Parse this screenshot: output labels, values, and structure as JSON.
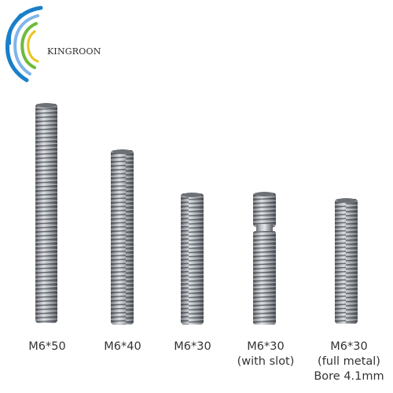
{
  "brand": {
    "name": "KINGROON",
    "colors": {
      "blue": "#1a7fc9",
      "light_blue": "#7fb6e6",
      "green": "#6fba3a",
      "yellow": "#e8c41e"
    }
  },
  "products": [
    {
      "label_lines": [
        "M6*50"
      ]
    },
    {
      "label_lines": [
        "M6*40"
      ]
    },
    {
      "label_lines": [
        "M6*30"
      ]
    },
    {
      "label_lines": [
        "M6*30",
        "(with slot)"
      ]
    },
    {
      "label_lines": [
        "M6*30",
        "(full metal)",
        "Bore 4.1mm"
      ]
    }
  ]
}
